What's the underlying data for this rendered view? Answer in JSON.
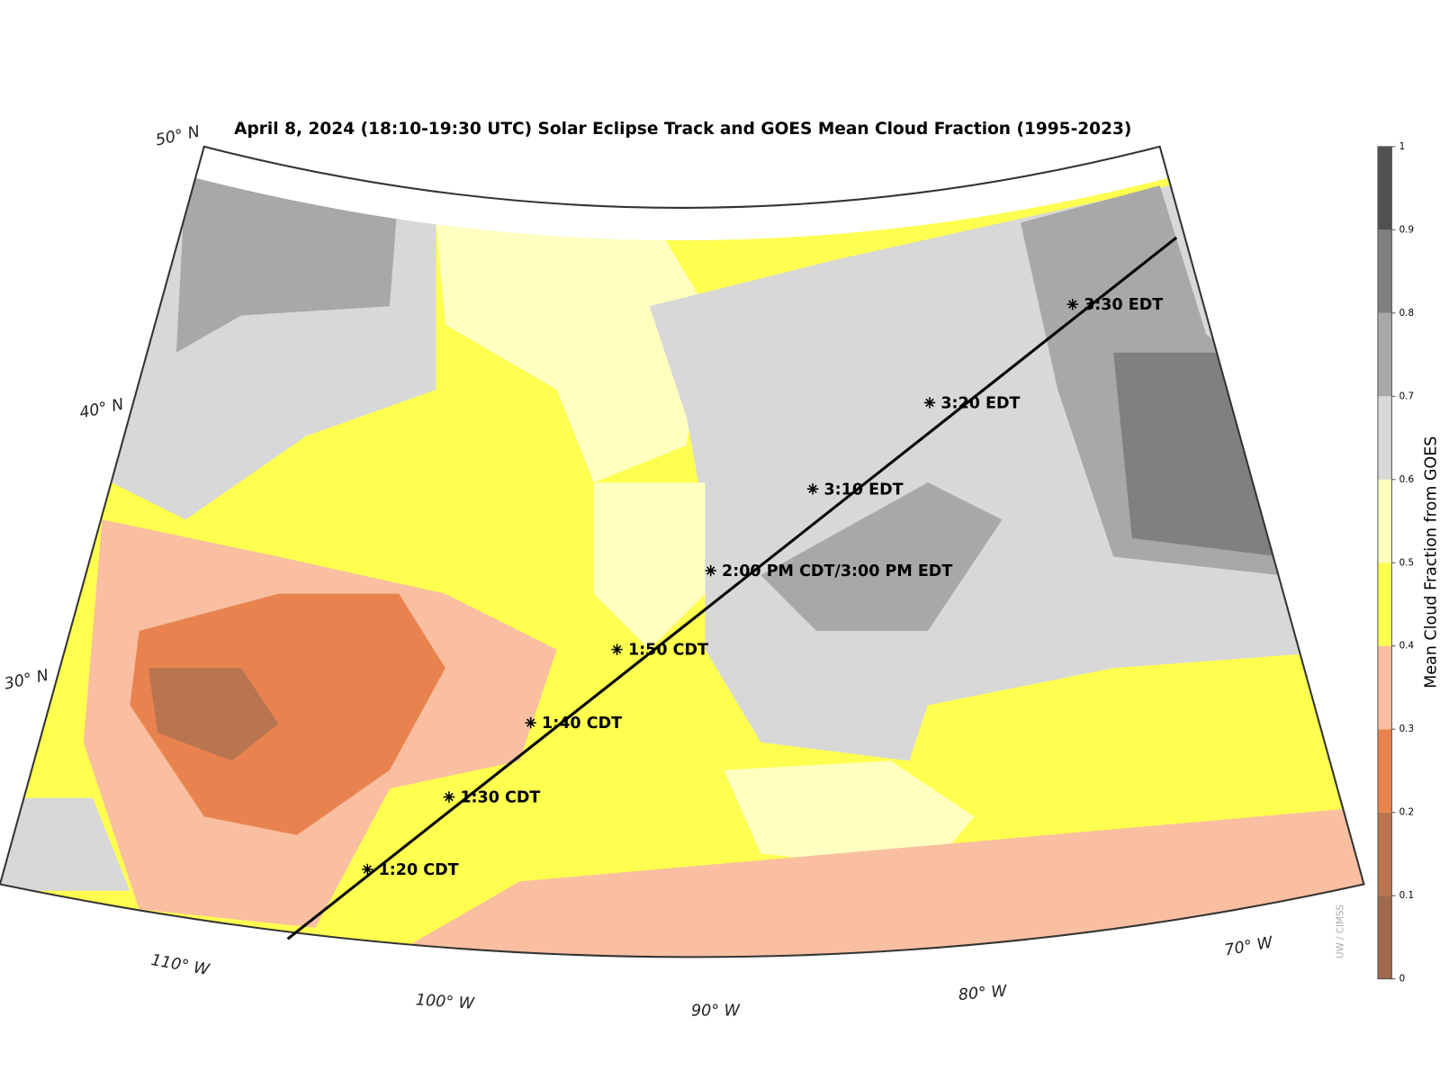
{
  "title": "April 8, 2024 (18:10-19:30 UTC)  Solar Eclipse Track and GOES Mean Cloud Fraction (1995-2023)",
  "track": [
    "1:20 CDT",
    "1:30 CDT",
    "1:40 CDT",
    "1:50 CDT",
    "2:00 PM CDT/3:00 PM EDT",
    "3:10 EDT",
    "3:20 EDT",
    "3:30 EDT"
  ],
  "latitude_labels": [
    "50° N",
    "40° N",
    "30° N"
  ],
  "longitude_labels": [
    "110° W",
    "100° W",
    "90° W",
    "80° W",
    "70° W"
  ],
  "colorbar": {
    "label": "Mean Cloud Fraction from GOES",
    "ticks": [
      0,
      0.1,
      0.2,
      0.3,
      0.4,
      0.5,
      0.6,
      0.7,
      0.8,
      0.9,
      1
    ],
    "colors": [
      "#a0694a",
      "#b9754f",
      "#e8834f",
      "#f9bfa0",
      "#ffff50",
      "#ffffc0",
      "#d8d8d8",
      "#a8a8a8",
      "#808080",
      "#505050"
    ]
  },
  "credit": "UW / CIMSS"
}
